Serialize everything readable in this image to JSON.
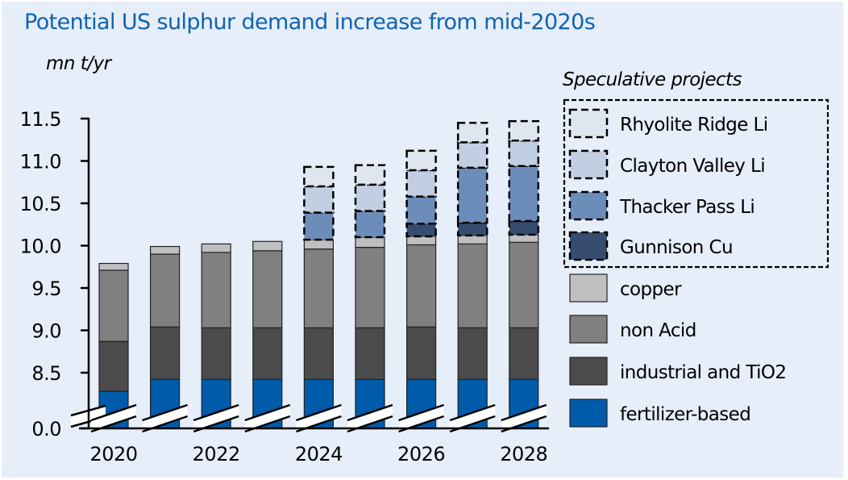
{
  "chart_data": {
    "type": "bar",
    "stacked": true,
    "title": "Potential US sulphur demand increase from mid-2020s",
    "ylabel": "mn t/yr",
    "xlabel": "",
    "categories": [
      "2020",
      "2021",
      "2022",
      "2023",
      "2024",
      "2025",
      "2026",
      "2027",
      "2028"
    ],
    "x_tick_labels": [
      "2020",
      "2022",
      "2024",
      "2026",
      "2028"
    ],
    "y_tick_labels": [
      "0.0",
      "8.5",
      "9.0",
      "9.5",
      "10.0",
      "10.5",
      "11.0",
      "11.5"
    ],
    "ylim": [
      8.5,
      11.5
    ],
    "axis_break": {
      "from": 0.0,
      "to": 8.5
    },
    "grid": false,
    "legend_position": "right",
    "legend_group_title": "Speculative projects",
    "series": [
      {
        "name": "fertilizer-based",
        "color": "#005BAA",
        "speculative": false,
        "values": [
          8.28,
          8.42,
          8.42,
          8.42,
          8.42,
          8.42,
          8.42,
          8.42,
          8.42
        ]
      },
      {
        "name": "industrial and TiO2",
        "color": "#4B4B4B",
        "speculative": false,
        "values": [
          0.59,
          0.62,
          0.61,
          0.61,
          0.61,
          0.61,
          0.62,
          0.61,
          0.61
        ]
      },
      {
        "name": "non Acid",
        "color": "#808080",
        "speculative": false,
        "values": [
          0.84,
          0.86,
          0.89,
          0.91,
          0.93,
          0.95,
          0.97,
          0.99,
          1.01
        ]
      },
      {
        "name": "copper",
        "color": "#BFBFBF",
        "speculative": false,
        "values": [
          0.08,
          0.09,
          0.1,
          0.11,
          0.11,
          0.12,
          0.1,
          0.1,
          0.09
        ]
      },
      {
        "name": "Gunnison Cu",
        "color": "#364D70",
        "speculative": true,
        "values": [
          0,
          0,
          0,
          0,
          0,
          0,
          0.15,
          0.15,
          0.16
        ]
      },
      {
        "name": "Thacker Pass Li",
        "color": "#6C8DBA",
        "speculative": true,
        "values": [
          0,
          0,
          0,
          0,
          0.32,
          0.31,
          0.32,
          0.65,
          0.65
        ]
      },
      {
        "name": "Clayton Valley Li",
        "color": "#C2CFE3",
        "speculative": true,
        "values": [
          0,
          0,
          0,
          0,
          0.31,
          0.31,
          0.31,
          0.3,
          0.3
        ]
      },
      {
        "name": "Rhyolite Ridge Li",
        "color": "#DFE6F0",
        "speculative": true,
        "values": [
          0,
          0,
          0,
          0,
          0.23,
          0.23,
          0.23,
          0.23,
          0.23
        ]
      }
    ],
    "legend_order": [
      "Rhyolite Ridge Li",
      "Clayton Valley Li",
      "Thacker Pass Li",
      "Gunnison Cu",
      "copper",
      "non Acid",
      "industrial and TiO2",
      "fertilizer-based"
    ]
  }
}
